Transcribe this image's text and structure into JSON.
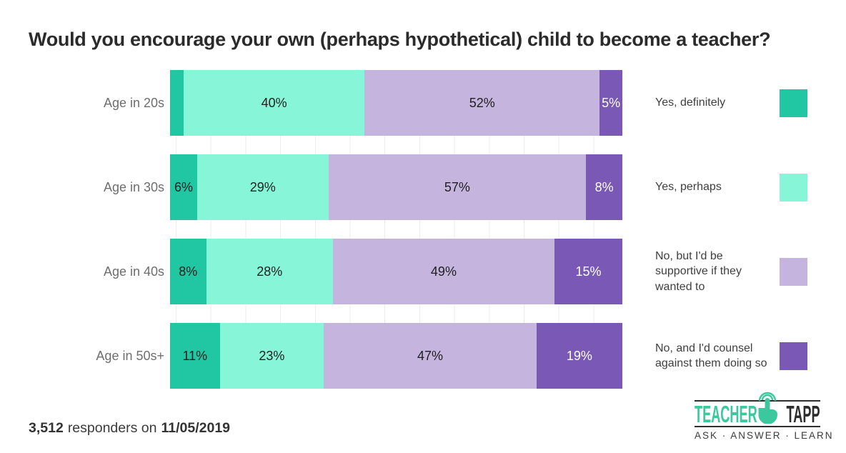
{
  "title": "Would you encourage your own (perhaps hypothetical) child to become a teacher?",
  "chart_data": {
    "type": "bar",
    "orientation": "horizontal",
    "stacked": true,
    "unit": "percent",
    "xlim": [
      0,
      100
    ],
    "grid": true,
    "legend_position": "right",
    "categories": [
      "Age in 20s",
      "Age in 30s",
      "Age in 40s",
      "Age in 50s+"
    ],
    "series": [
      {
        "name": "Yes, definitely",
        "color": "#21c6a2",
        "text_color": "#1f1f1f",
        "values": [
          3,
          6,
          8,
          11
        ],
        "labels": [
          "",
          "6%",
          "8%",
          "11%"
        ]
      },
      {
        "name": "Yes, perhaps",
        "color": "#87f5d8",
        "text_color": "#1f1f1f",
        "values": [
          40,
          29,
          28,
          23
        ],
        "labels": [
          "40%",
          "29%",
          "28%",
          "23%"
        ]
      },
      {
        "name": "No, but I'd be supportive if they wanted to",
        "color": "#c4b4de",
        "text_color": "#1f1f1f",
        "values": [
          52,
          57,
          49,
          47
        ],
        "labels": [
          "52%",
          "57%",
          "49%",
          "47%"
        ]
      },
      {
        "name": "No, and I'd counsel against them doing so",
        "color": "#7a59b6",
        "text_color": "#ffffff",
        "values": [
          5,
          8,
          15,
          19
        ],
        "labels": [
          "5%",
          "8%",
          "15%",
          "19%"
        ]
      }
    ]
  },
  "footer": {
    "responders": "3,512",
    "connector": "responders on",
    "date": "11/05/2019"
  },
  "logo": {
    "word1": "TEACHER",
    "word2": "TAPP",
    "tagline": "ASK · ANSWER · LEARN",
    "teal": "#3cc89f",
    "dark": "#2d2d2d"
  },
  "colors": {
    "teal": "#21c6a2",
    "mint": "#87f5d8",
    "lavender": "#c4b4de",
    "purple": "#7a59b6",
    "grid": "#ededed",
    "title_text": "#2b2b2b",
    "category_text": "#6e6e6e",
    "footer_text": "#3b3b3b"
  }
}
